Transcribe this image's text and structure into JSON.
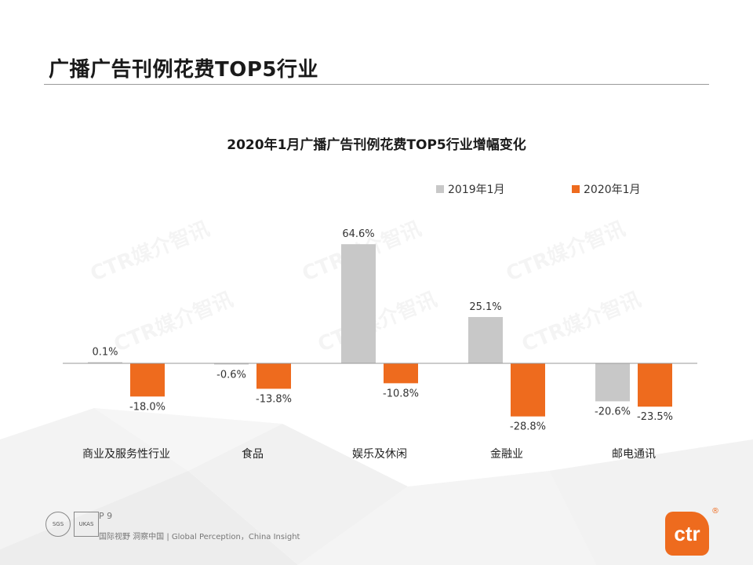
{
  "page": {
    "title": "广播广告刊例花费TOP5行业",
    "page_number": "P 9",
    "slogan": "国际视野  洞察中国 | Global Perception，China Insight",
    "logo_text": "ctr",
    "logo_mark": "®",
    "watermark_text": "CTR媒介智讯",
    "cert_labels": [
      "SGS",
      "UKAS"
    ]
  },
  "colors": {
    "series_2019": "#c8c8c8",
    "series_2020": "#ee6b1e",
    "accent": "#ee6b1e"
  },
  "chart_data": {
    "type": "bar",
    "title": "2020年1月广播广告刊例花费TOP5行业增幅变化",
    "categories": [
      "商业及服务性行业",
      "食品",
      "娱乐及休闲",
      "金融业",
      "邮电通讯"
    ],
    "series": [
      {
        "name": "2019年1月",
        "values": [
          0.1,
          -0.6,
          64.6,
          25.1,
          -20.6
        ],
        "labels": [
          "0.1%",
          "-0.6%",
          "64.6%",
          "25.1%",
          "-20.6%"
        ]
      },
      {
        "name": "2020年1月",
        "values": [
          -18.0,
          -13.8,
          -10.8,
          -28.8,
          -23.5
        ],
        "labels": [
          "-18.0%",
          "-13.8%",
          "-10.8%",
          "-28.8%",
          "-23.5%"
        ]
      }
    ],
    "legend_position": "top-right",
    "grid": false,
    "unit": "%"
  }
}
